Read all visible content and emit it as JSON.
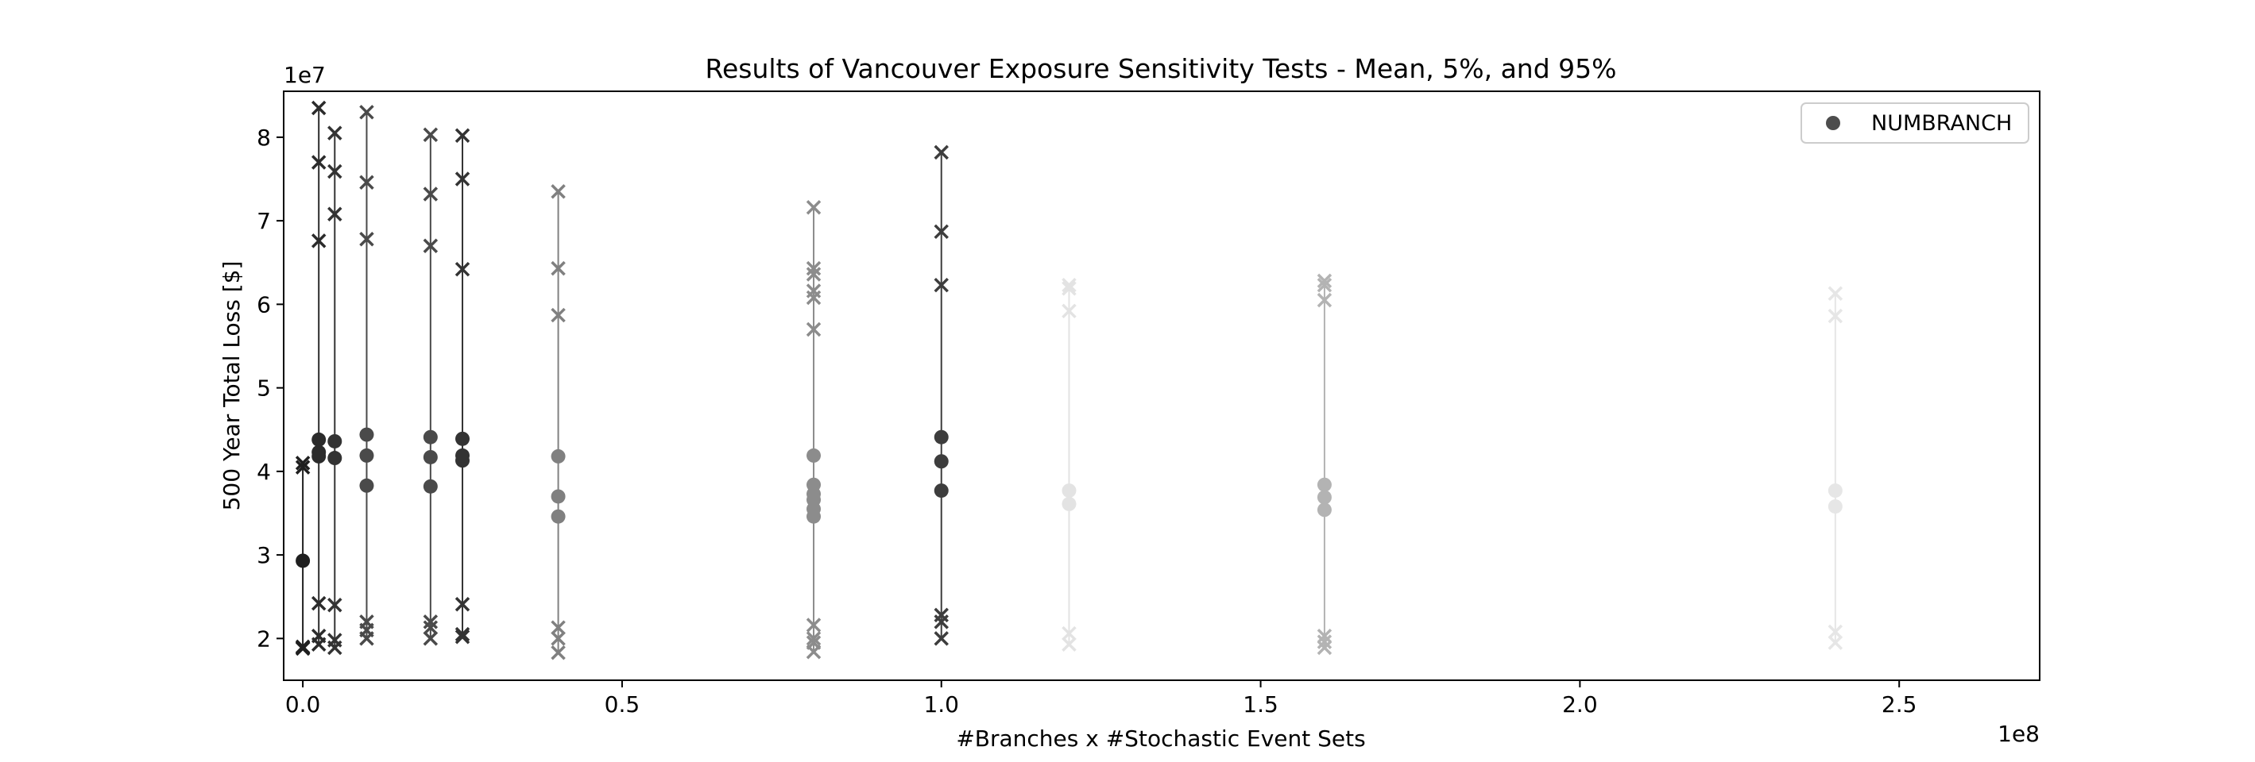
{
  "chart_data": {
    "type": "scatter",
    "title": "Results of Vancouver Exposure Sensitivity Tests - Mean, 5%, and 95%",
    "xlabel": "#Branches x #Stochastic Event Sets",
    "ylabel": "500 Year Total Loss [$]",
    "x_exponent_label": "1e8",
    "y_exponent_label": "1e7",
    "xlim": [
      -3000000,
      272000000
    ],
    "ylim": [
      15000000,
      85500000
    ],
    "x_ticks": [
      0,
      50000000,
      100000000,
      150000000,
      200000000,
      250000000
    ],
    "x_tick_labels": [
      "0.0",
      "0.5",
      "1.0",
      "1.5",
      "2.0",
      "2.5"
    ],
    "y_ticks": [
      20000000,
      30000000,
      40000000,
      50000000,
      60000000,
      70000000,
      80000000
    ],
    "y_tick_labels": [
      "2",
      "3",
      "4",
      "5",
      "6",
      "7",
      "8"
    ],
    "grid": false,
    "legend": {
      "placement": "top-right",
      "entries": [
        {
          "label": "NUMBRANCH",
          "marker": "circle",
          "color": "#4d4d4d"
        }
      ]
    },
    "marker_legend": {
      "circle": "mean",
      "x": "5% and 95%"
    },
    "groups": [
      {
        "x": 0,
        "color": "#1f1f1f",
        "lines": [
          [
            18800000,
            41000000
          ]
        ],
        "means": [
          29300000
        ],
        "p5": [
          18800000,
          18900000,
          19000000
        ],
        "p95": [
          40500000,
          41000000
        ]
      },
      {
        "x": 2500000,
        "color": "#2b2b2b",
        "lines": [
          [
            19300000,
            83500000
          ]
        ],
        "means": [
          41800000,
          42300000,
          43800000
        ],
        "p5": [
          19300000,
          20300000,
          24200000
        ],
        "p95": [
          67600000,
          77000000,
          83500000
        ]
      },
      {
        "x": 5000000,
        "color": "#333333",
        "lines": [
          [
            18900000,
            80500000
          ]
        ],
        "means": [
          41600000,
          43600000
        ],
        "p5": [
          18900000,
          19800000,
          24000000
        ],
        "p95": [
          70800000,
          75900000,
          80500000
        ]
      },
      {
        "x": 10000000,
        "color": "#4a4a4a",
        "lines": [
          [
            20000000,
            83000000
          ]
        ],
        "means": [
          38300000,
          41900000,
          44400000
        ],
        "p5": [
          20000000,
          21000000,
          22000000
        ],
        "p95": [
          67800000,
          74600000,
          83000000
        ]
      },
      {
        "x": 20000000,
        "color": "#4a4a4a",
        "lines": [
          [
            20000000,
            80300000
          ]
        ],
        "means": [
          38200000,
          41700000,
          44100000
        ],
        "p5": [
          20000000,
          21300000,
          22000000
        ],
        "p95": [
          67000000,
          73200000,
          80300000
        ]
      },
      {
        "x": 25000000,
        "color": "#333333",
        "lines": [
          [
            20200000,
            80200000
          ]
        ],
        "means": [
          41300000,
          41900000,
          43900000
        ],
        "p5": [
          20200000,
          20500000,
          24100000
        ],
        "p95": [
          64200000,
          75000000,
          80200000
        ]
      },
      {
        "x": 40000000,
        "color": "#808080",
        "lines": [
          [
            18300000,
            73500000
          ]
        ],
        "means": [
          34600000,
          37000000,
          41800000
        ],
        "p5": [
          18300000,
          20000000,
          21300000
        ],
        "p95": [
          58700000,
          64300000,
          73500000
        ]
      },
      {
        "x": 80000000,
        "color": "#8c8c8c",
        "lines": [
          [
            18400000,
            71600000
          ]
        ],
        "means": [
          34600000,
          35500000,
          36600000,
          37300000,
          38400000,
          41900000
        ],
        "p5": [
          18400000,
          19500000,
          20000000,
          21600000
        ],
        "p95": [
          57000000,
          60800000,
          61600000,
          63600000,
          64300000,
          71600000
        ]
      },
      {
        "x": 100000000,
        "color": "#3d3d3d",
        "lines": [
          [
            20000000,
            78200000
          ]
        ],
        "means": [
          37700000,
          41200000,
          44100000
        ],
        "p5": [
          20000000,
          22000000,
          22800000
        ],
        "p95": [
          62300000,
          68700000,
          78200000
        ]
      },
      {
        "x": 120000000,
        "color": "#e3e3e3",
        "lines": [
          [
            19300000,
            62300000
          ]
        ],
        "means": [
          36100000,
          37700000
        ],
        "p5": [
          19300000,
          20600000
        ],
        "p95": [
          59200000,
          61900000,
          62300000
        ]
      },
      {
        "x": 160000000,
        "color": "#b3b3b3",
        "lines": [
          [
            18900000,
            62800000
          ]
        ],
        "means": [
          35400000,
          36900000,
          38400000
        ],
        "p5": [
          18900000,
          19600000,
          20300000
        ],
        "p95": [
          60500000,
          62300000,
          62800000
        ]
      },
      {
        "x": 240000000,
        "color": "#e6e6e6",
        "lines": [
          [
            19500000,
            61300000
          ]
        ],
        "means": [
          35800000,
          37700000
        ],
        "p5": [
          19500000,
          20800000
        ],
        "p95": [
          58600000,
          61300000
        ]
      }
    ]
  }
}
